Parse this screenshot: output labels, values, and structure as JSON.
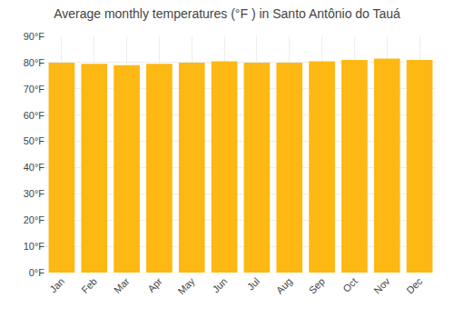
{
  "chart_data": {
    "type": "bar",
    "title": "Average monthly temperatures (°F ) in Santo Antônio do Tauá",
    "categories": [
      "Jan",
      "Feb",
      "Mar",
      "Apr",
      "May",
      "Jun",
      "Jul",
      "Aug",
      "Sep",
      "Oct",
      "Nov",
      "Dec"
    ],
    "values": [
      80,
      79.5,
      79,
      79.5,
      80,
      80.5,
      80,
      80,
      80.5,
      81,
      81.5,
      81
    ],
    "color": "#FDB813",
    "ylim": [
      0,
      90
    ],
    "yticks": [
      {
        "value": 0,
        "label": "0°F"
      },
      {
        "value": 10,
        "label": "10°F"
      },
      {
        "value": 20,
        "label": "20°F"
      },
      {
        "value": 30,
        "label": "30°F"
      },
      {
        "value": 40,
        "label": "40°F"
      },
      {
        "value": 50,
        "label": "50°F"
      },
      {
        "value": 60,
        "label": "60°F"
      },
      {
        "value": 70,
        "label": "70°F"
      },
      {
        "value": 80,
        "label": "80°F"
      },
      {
        "value": 90,
        "label": "90°F"
      }
    ],
    "grid": true
  }
}
